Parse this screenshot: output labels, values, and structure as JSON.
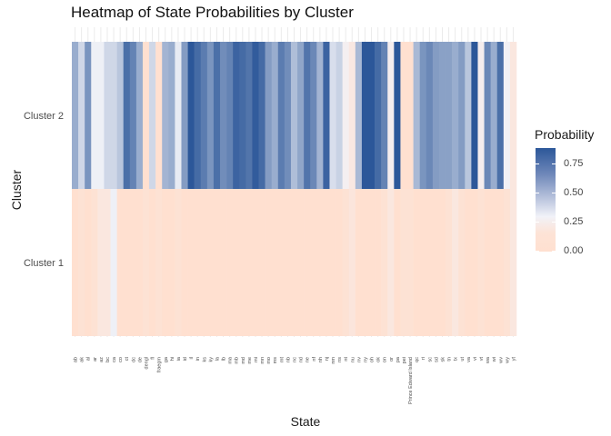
{
  "chart_data": {
    "type": "heatmap",
    "title": "Heatmap of State Probabilities by Cluster",
    "xlabel": "State",
    "ylabel": "Cluster",
    "y_categories": [
      "Cluster 1",
      "Cluster 2"
    ],
    "x_categories": [
      "ab",
      "ak",
      "al",
      "ar",
      "az",
      "bc",
      "ca",
      "co",
      "ct",
      "dc",
      "de",
      "dengl",
      "fl",
      "fraegm",
      "ga",
      "hi",
      "ia",
      "id",
      "il",
      "in",
      "ks",
      "ky",
      "la",
      "lb",
      "ma",
      "mb",
      "md",
      "me",
      "mi",
      "mn",
      "mo",
      "ms",
      "mt",
      "nb",
      "nc",
      "nd",
      "ne",
      "nf",
      "nh",
      "nj",
      "nm",
      "ns",
      "nt",
      "nu",
      "nv",
      "ny",
      "oh",
      "ok",
      "on",
      "or",
      "pa",
      "pei",
      "Prince Edward Island",
      "qc",
      "ri",
      "sc",
      "sd",
      "sk",
      "tn",
      "tx",
      "ut",
      "va",
      "vi",
      "vt",
      "wa",
      "wi",
      "wv",
      "wy",
      "yt"
    ],
    "cluster2_values": [
      0.55,
      0.38,
      0.65,
      0.28,
      0.28,
      0.38,
      0.38,
      0.45,
      0.8,
      0.72,
      0.55,
      0.0,
      0.38,
      0.0,
      0.52,
      0.55,
      0.3,
      0.62,
      0.9,
      0.82,
      0.75,
      0.65,
      0.8,
      0.68,
      0.72,
      0.85,
      0.82,
      0.78,
      0.88,
      0.82,
      0.62,
      0.55,
      0.75,
      0.68,
      0.48,
      0.58,
      0.78,
      0.7,
      0.52,
      0.85,
      0.35,
      0.4,
      0.22,
      0.12,
      0.5,
      0.9,
      0.9,
      0.82,
      0.72,
      0.2,
      0.9,
      0.0,
      0.0,
      0.5,
      0.65,
      0.7,
      0.62,
      0.6,
      0.6,
      0.55,
      0.62,
      0.45,
      0.9,
      0.2,
      0.7,
      0.55,
      0.8,
      0.25,
      0.1
    ],
    "cluster1_values": [
      0.0,
      0.03,
      0.0,
      0.03,
      0.1,
      0.1,
      0.28,
      0.0,
      0.0,
      0.0,
      0.0,
      0.03,
      0.0,
      0.03,
      0.0,
      0.0,
      0.03,
      0.0,
      0.0,
      0.0,
      0.0,
      0.0,
      0.0,
      0.0,
      0.0,
      0.0,
      0.0,
      0.0,
      0.0,
      0.0,
      0.0,
      0.0,
      0.0,
      0.0,
      0.0,
      0.0,
      0.0,
      0.0,
      0.0,
      0.0,
      0.0,
      0.0,
      0.03,
      0.08,
      0.0,
      0.0,
      0.0,
      0.0,
      0.03,
      0.1,
      0.0,
      0.03,
      0.03,
      0.0,
      0.0,
      0.0,
      0.0,
      0.0,
      0.03,
      0.1,
      0.03,
      0.0,
      0.0,
      0.03,
      0.0,
      0.0,
      0.0,
      0.03,
      0.1
    ],
    "legend": {
      "title": "Probability",
      "ticks": [
        "0.75",
        "0.50",
        "0.25",
        "0.00"
      ],
      "tick_values": [
        0.75,
        0.5,
        0.25,
        0.0
      ],
      "range": [
        0,
        0.9
      ],
      "placement": "right"
    },
    "colors": {
      "low": "#ffe0d0",
      "mid": "#f1f2f8",
      "high": "#2c5799"
    },
    "grid": true
  }
}
